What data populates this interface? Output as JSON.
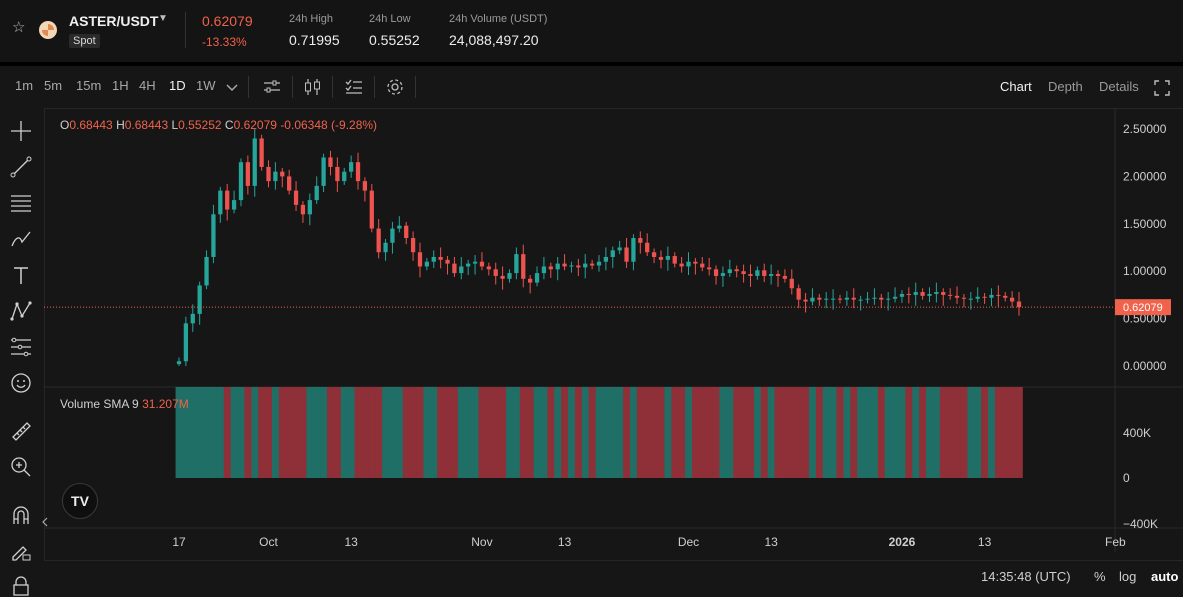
{
  "ticker": {
    "symbol": "ASTER/USDT",
    "market": "Spot",
    "last_price": "0.62079",
    "change_pct": "-13.33%",
    "stats": [
      {
        "label": "24h High",
        "value": "0.71995"
      },
      {
        "label": "24h Low",
        "value": "0.55252"
      },
      {
        "label": "24h Volume (USDT)",
        "value": "24,088,497.20"
      }
    ]
  },
  "toolbar": {
    "timeframes": [
      "1m",
      "5m",
      "15m",
      "1H",
      "4H",
      "1D",
      "1W"
    ],
    "active_timeframe": "1D",
    "views": [
      "Chart",
      "Depth",
      "Details"
    ],
    "active_view": "Chart"
  },
  "ohlc": {
    "open_label": "O",
    "open": "0.68443",
    "high_label": "H",
    "high": "0.68443",
    "low_label": "L",
    "low": "0.55252",
    "close_label": "C",
    "close": "0.62079",
    "change": "-0.06348",
    "change_pct": "(-9.28%)"
  },
  "volume": {
    "label": "Volume SMA 9",
    "value": "31.207M"
  },
  "chart_data": {
    "type": "candlestick",
    "price_axis": {
      "ticks": [
        "2.50000",
        "2.00000",
        "1.50000",
        "1.00000",
        "0.50000",
        "0.00000"
      ],
      "tick_values": [
        2.5,
        2.0,
        1.5,
        1.0,
        0.5,
        0.0
      ],
      "current_price": 0.62079,
      "current_price_label": "0.62079"
    },
    "volume_axis": {
      "ticks": [
        "400K",
        "0",
        "−400K"
      ]
    },
    "x_axis": {
      "labels": [
        {
          "text": "17",
          "index": 0
        },
        {
          "text": "Oct",
          "index": 13
        },
        {
          "text": "13",
          "index": 25
        },
        {
          "text": "Nov",
          "index": 44
        },
        {
          "text": "13",
          "index": 56
        },
        {
          "text": "Dec",
          "index": 74
        },
        {
          "text": "13",
          "index": 86
        },
        {
          "text": "2026",
          "index": 105
        },
        {
          "text": "13",
          "index": 117
        },
        {
          "text": "Feb",
          "index": 136
        }
      ]
    },
    "closes": [
      0.05,
      0.45,
      0.55,
      0.85,
      1.15,
      1.6,
      1.85,
      1.65,
      1.75,
      2.15,
      1.9,
      2.4,
      2.1,
      1.95,
      2.05,
      2.0,
      1.85,
      1.7,
      1.6,
      1.75,
      1.9,
      2.2,
      2.1,
      1.95,
      2.05,
      2.15,
      1.95,
      1.85,
      1.45,
      1.2,
      1.3,
      1.45,
      1.48,
      1.35,
      1.2,
      1.05,
      1.1,
      1.15,
      1.12,
      1.08,
      0.98,
      1.05,
      1.08,
      1.1,
      1.05,
      1.02,
      0.95,
      0.92,
      0.98,
      1.18,
      0.92,
      0.88,
      0.98,
      1.05,
      1.02,
      1.08,
      1.05,
      1.06,
      1.04,
      1.08,
      1.06,
      1.1,
      1.15,
      1.22,
      1.25,
      1.1,
      1.35,
      1.3,
      1.2,
      1.15,
      1.12,
      1.16,
      1.08,
      1.05,
      1.1,
      1.08,
      1.04,
      1.02,
      0.95,
      0.98,
      1.02,
      1.0,
      0.97,
      0.95,
      1.01,
      0.95,
      0.97,
      0.95,
      0.92,
      0.82,
      0.7,
      0.68,
      0.72,
      0.7,
      0.71,
      0.71,
      0.7,
      0.72,
      0.7,
      0.7,
      0.71,
      0.72,
      0.7,
      0.71,
      0.73,
      0.76,
      0.75,
      0.78,
      0.74,
      0.76,
      0.78,
      0.75,
      0.74,
      0.72,
      0.71,
      0.71,
      0.73,
      0.72,
      0.75,
      0.74,
      0.72,
      0.68,
      0.62079
    ],
    "volume_colors": "mixed green/red, equal height bars"
  },
  "status": {
    "clock": "14:35:48 (UTC)",
    "percent_toggle": "%",
    "log_toggle": "log",
    "auto_toggle": "auto"
  },
  "colors": {
    "up": "#26a69a",
    "down": "#ef5350",
    "accent_red": "#f0624b",
    "background": "#161616"
  }
}
